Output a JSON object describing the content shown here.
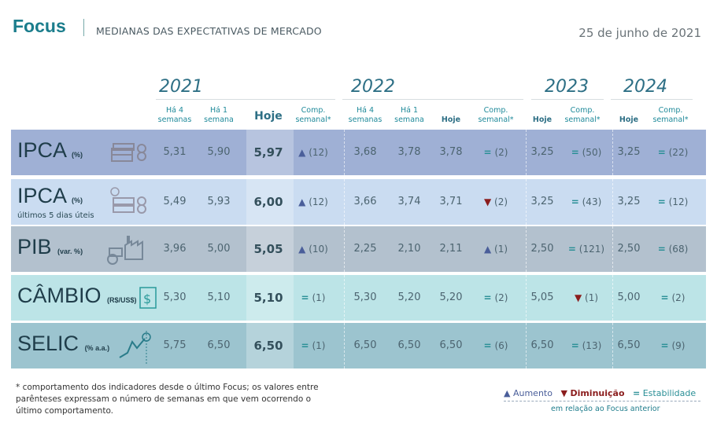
{
  "header": {
    "brand": "Focus",
    "subtitle": "MEDIANAS DAS EXPECTATIVAS DE MERCADO",
    "date": "25 de junho de 2021"
  },
  "years": [
    "2021",
    "2022",
    "2023",
    "2024"
  ],
  "columns": {
    "ha4": "Há 4 semanas",
    "ha1": "Há 1 semana",
    "hoje": "Hoje",
    "comp": "Comp. semanal*"
  },
  "colors": {
    "brand": "#1b7d8c",
    "aumento": "#4a5e9a",
    "diminuicao": "#8b1d1d",
    "estabilidade": "#2a8f96"
  },
  "rows": [
    {
      "name": "IPCA",
      "unit": "(%)",
      "sub": "",
      "icon": "money-stack-icon",
      "bg": "#9fb0d5",
      "y2021": [
        "5,31",
        "5,90",
        "5,97",
        {
          "dir": "up",
          "n": "(12)"
        }
      ],
      "y2022": [
        "3,68",
        "3,78",
        "3,78",
        {
          "dir": "eq",
          "n": "(2)"
        }
      ],
      "y2023": [
        "3,25",
        {
          "dir": "eq",
          "n": "(50)"
        }
      ],
      "y2024": [
        "3,25",
        {
          "dir": "eq",
          "n": "(22)"
        }
      ]
    },
    {
      "name": "IPCA",
      "unit": "(%)",
      "sub": "últimos 5 dias úteis",
      "icon": "money-coin-icon",
      "bg": "#cadcf1",
      "y2021": [
        "5,49",
        "5,93",
        "6,00",
        {
          "dir": "up",
          "n": "(12)"
        }
      ],
      "y2022": [
        "3,66",
        "3,74",
        "3,71",
        {
          "dir": "down",
          "n": "(2)"
        }
      ],
      "y2023": [
        "3,25",
        {
          "dir": "eq",
          "n": "(43)"
        }
      ],
      "y2024": [
        "3,25",
        {
          "dir": "eq",
          "n": "(12)"
        }
      ]
    },
    {
      "name": "PIB",
      "unit": "(var. %)",
      "sub": "",
      "icon": "factory-tractor-icon",
      "bg": "#b3c1ce",
      "y2021": [
        "3,96",
        "5,00",
        "5,05",
        {
          "dir": "up",
          "n": "(10)"
        }
      ],
      "y2022": [
        "2,25",
        "2,10",
        "2,11",
        {
          "dir": "up",
          "n": "(1)"
        }
      ],
      "y2023": [
        "2,50",
        {
          "dir": "eq",
          "n": "(121)"
        }
      ],
      "y2024": [
        "2,50",
        {
          "dir": "eq",
          "n": "(68)"
        }
      ]
    },
    {
      "name": "CÂMBIO",
      "unit": "(R$/US$)",
      "sub": "",
      "icon": "currency-exchange-icon",
      "bg": "#bce4e7",
      "y2021": [
        "5,30",
        "5,10",
        "5,10",
        {
          "dir": "eq",
          "n": "(1)"
        }
      ],
      "y2022": [
        "5,30",
        "5,20",
        "5,20",
        {
          "dir": "eq",
          "n": "(2)"
        }
      ],
      "y2023": [
        "5,05",
        {
          "dir": "down",
          "n": "(1)"
        }
      ],
      "y2024": [
        "5,00",
        {
          "dir": "eq",
          "n": "(2)"
        }
      ]
    },
    {
      "name": "SELIC",
      "unit": "(% a.a.)",
      "sub": "",
      "icon": "rate-chart-icon",
      "bg": "#9cc4cf",
      "y2021": [
        "5,75",
        "6,50",
        "6,50",
        {
          "dir": "eq",
          "n": "(1)"
        }
      ],
      "y2022": [
        "6,50",
        "6,50",
        "6,50",
        {
          "dir": "eq",
          "n": "(6)"
        }
      ],
      "y2023": [
        "6,50",
        {
          "dir": "eq",
          "n": "(13)"
        }
      ],
      "y2024": [
        "6,50",
        {
          "dir": "eq",
          "n": "(9)"
        }
      ]
    }
  ],
  "footer": {
    "note": "* comportamento dos indicadores desde o último Focus; os valores entre parênteses expressam o número de semanas em que vem ocorrendo o último comportamento.",
    "legend": {
      "aumento": "Aumento",
      "diminuicao": "Diminuição",
      "estabilidade": "Estabilidade",
      "sub": "em relação ao Focus anterior"
    }
  }
}
